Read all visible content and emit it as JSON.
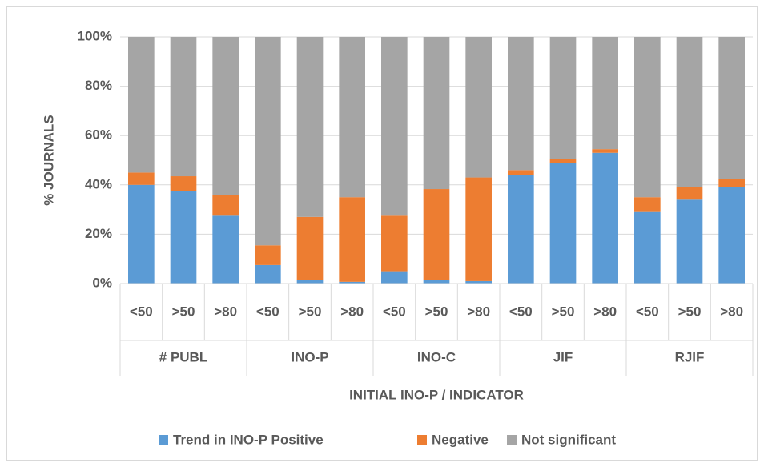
{
  "chart_data": {
    "type": "stacked_bar",
    "y_label": "% JOURNALS",
    "x_label": "INITIAL INO-P / INDICATOR",
    "categories": [
      "<50",
      ">50",
      ">80",
      "<50",
      ">50",
      ">80",
      "<50",
      ">50",
      ">80",
      "<50",
      ">50",
      ">80",
      "<50",
      ">50",
      ">80"
    ],
    "groups": [
      "# PUBL",
      "INO-P",
      "INO-C",
      "JIF",
      "RJIF"
    ],
    "series": [
      {
        "name": "Trend in INO-P Positive",
        "color": "#5b9bd5",
        "values": [
          40,
          37.5,
          27.5,
          7.5,
          1.5,
          0.7,
          5,
          1.3,
          1,
          44,
          49,
          53,
          29,
          34,
          39
        ]
      },
      {
        "name": "Negative",
        "color": "#ed7d31",
        "values": [
          5,
          6,
          8.5,
          8,
          25.5,
          34.3,
          22.5,
          37,
          42,
          2,
          1.5,
          1.5,
          6,
          5,
          3.5
        ]
      },
      {
        "name": "Not significant",
        "color": "#a5a5a5",
        "values": [
          55,
          56.5,
          64,
          84.5,
          73,
          65,
          72.5,
          61.7,
          57,
          54,
          49.5,
          45.5,
          65,
          61,
          57.5
        ]
      }
    ],
    "ylim": [
      0,
      100
    ],
    "yticks": [
      {
        "value": 0,
        "label": "0%"
      },
      {
        "value": 20,
        "label": "20%"
      },
      {
        "value": 40,
        "label": "40%"
      },
      {
        "value": 60,
        "label": "60%"
      },
      {
        "value": 80,
        "label": "80%"
      },
      {
        "value": 100,
        "label": "100%"
      }
    ],
    "grid": true,
    "legend": "bottom"
  }
}
